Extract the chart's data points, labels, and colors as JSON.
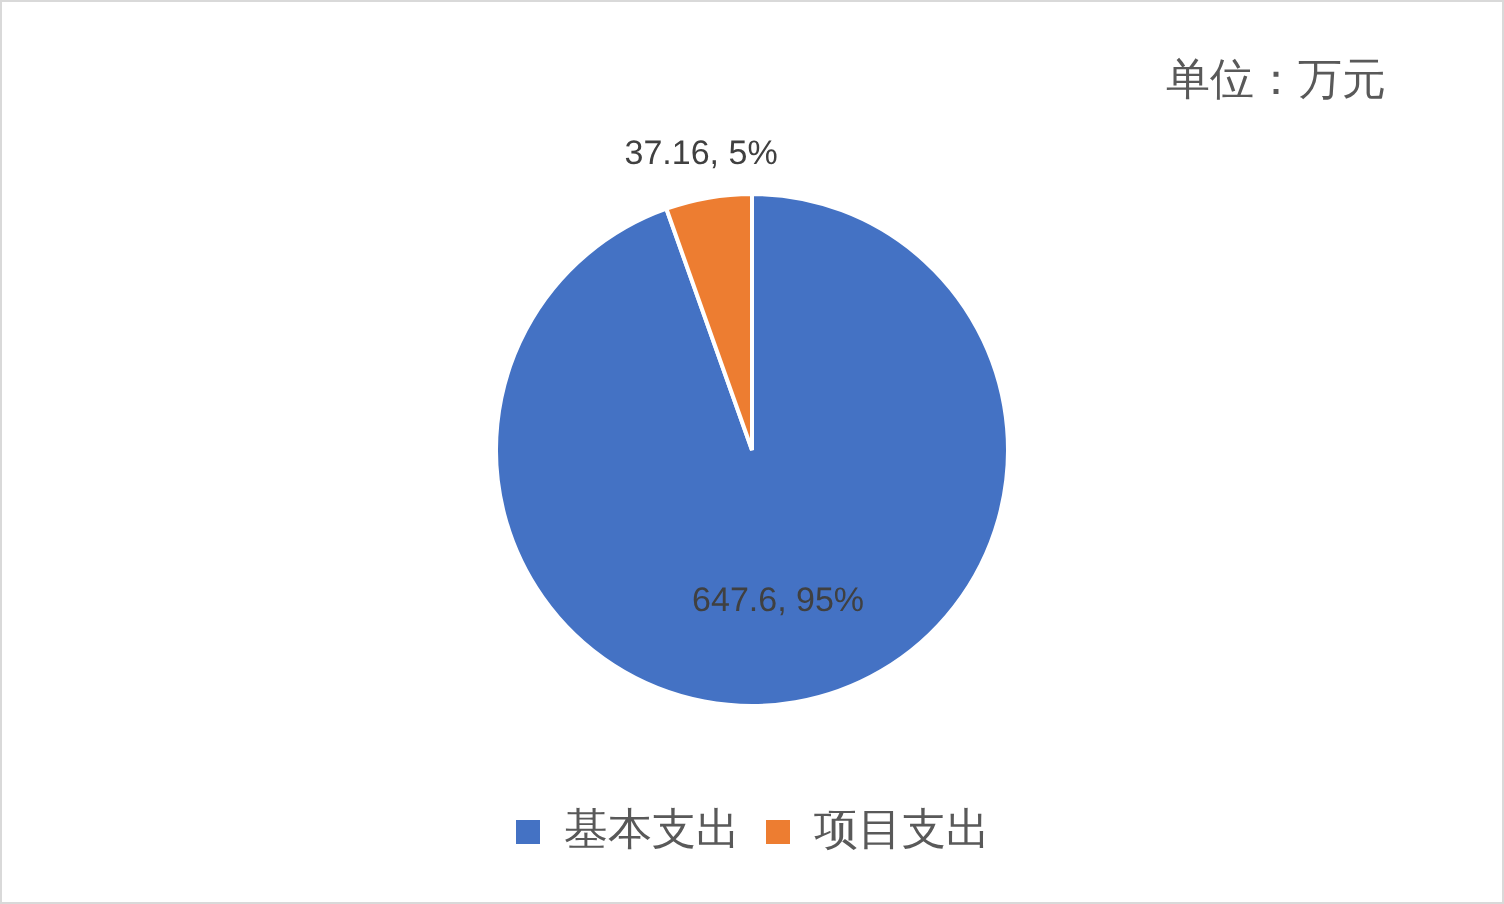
{
  "chart_data": {
    "type": "pie",
    "categories": [
      "基本支出",
      "项目支出"
    ],
    "values": [
      647.6,
      37.16
    ],
    "colors": [
      "#4472c4",
      "#ed7d31"
    ],
    "value_labels": [
      "647.6, 95%",
      "37.16, 5%"
    ],
    "legend": "bottom",
    "annotations": [
      "单位：万元"
    ]
  }
}
